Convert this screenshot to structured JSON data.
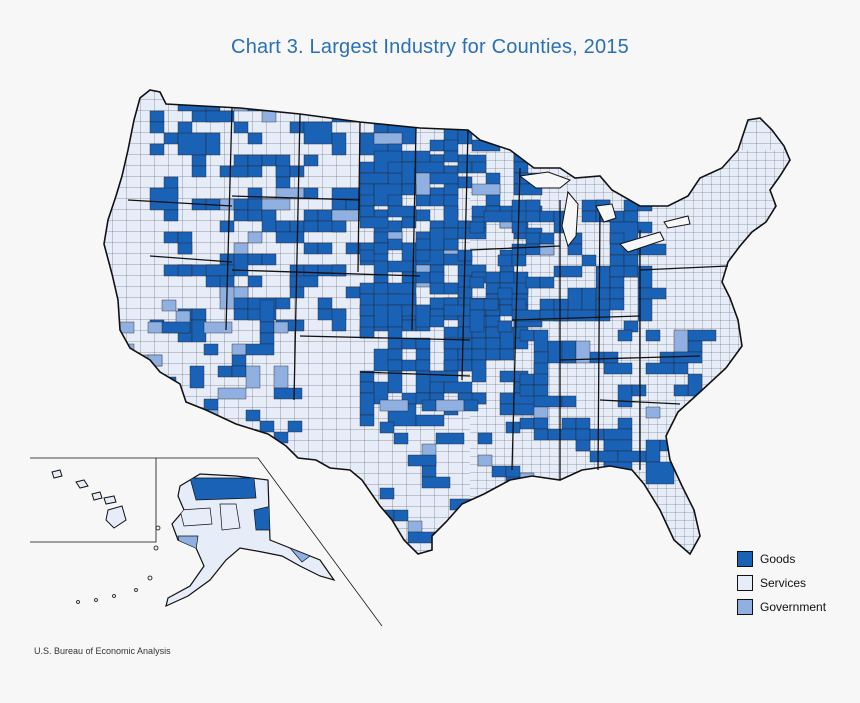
{
  "title": "Chart 3. Largest Industry for Counties, 2015",
  "source": "U.S. Bureau of Economic Analysis",
  "legend": [
    {
      "label": "Goods",
      "color": "#1a62b6"
    },
    {
      "label": "Services",
      "color": "#e6ecf8"
    },
    {
      "label": "Government",
      "color": "#8fb0e0"
    }
  ],
  "colors": {
    "border": "#111111",
    "background": "#f7f7f7",
    "title": "#2a70b8"
  }
}
